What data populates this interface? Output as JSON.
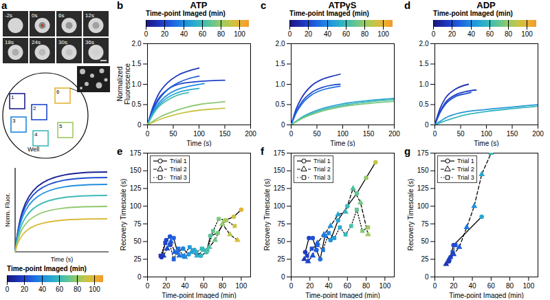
{
  "panel_a": {
    "letter": "a",
    "frame_labels": [
      "-2s",
      "0s",
      "6s",
      "12s",
      "18s",
      "24s",
      "30s",
      "36s"
    ],
    "region_labels": [
      "1",
      "2",
      "3",
      "4",
      "5",
      "6"
    ],
    "well_label": "Well",
    "schematic_ylabel": "Norm. Fluor.",
    "schematic_xlabel": "Time (s)"
  },
  "colorbar": {
    "label": "Time-point Imaged (min)",
    "range": [
      0,
      110
    ],
    "ticks": [
      0,
      20,
      40,
      60,
      80,
      100
    ]
  },
  "chart_data": [
    {
      "panel": "b",
      "type": "line",
      "title": "ATP",
      "xlabel": "Time (s)",
      "ylabel": "Normalized Fluorescence",
      "xlim": [
        0,
        200
      ],
      "xticks": [
        0,
        50,
        100,
        150,
        200
      ],
      "ylim": [
        0,
        2
      ],
      "yticks": [
        0,
        0.5,
        {
          "value": 1,
          "label": "1.0"
        },
        1.5,
        {
          "value": 2,
          "label": "2.0"
        }
      ],
      "series": [
        {
          "time_point": 15,
          "x": [
            0,
            10,
            20,
            40,
            60,
            80,
            100
          ],
          "values": [
            0,
            0.42,
            0.72,
            1.05,
            1.23,
            1.33,
            1.4
          ]
        },
        {
          "time_point": 18,
          "x": [
            0,
            10,
            20,
            40,
            60,
            100,
            150
          ],
          "values": [
            0,
            0.38,
            0.62,
            0.88,
            1.0,
            1.07,
            1.1
          ]
        },
        {
          "time_point": 28,
          "x": [
            0,
            10,
            20,
            40,
            60,
            80,
            100
          ],
          "values": [
            0,
            0.34,
            0.58,
            0.88,
            1.04,
            1.14,
            1.2
          ]
        },
        {
          "time_point": 40,
          "x": [
            0,
            10,
            20,
            40,
            60,
            80,
            110
          ],
          "values": [
            0,
            0.3,
            0.5,
            0.75,
            0.88,
            0.95,
            1.02
          ]
        },
        {
          "time_point": 50,
          "x": [
            0,
            10,
            20,
            40,
            60,
            80,
            100
          ],
          "values": [
            0,
            0.26,
            0.45,
            0.68,
            0.8,
            0.86,
            0.9
          ]
        },
        {
          "time_point": 62,
          "x": [
            0,
            10,
            20,
            40,
            60,
            80
          ],
          "values": [
            0,
            0.24,
            0.42,
            0.62,
            0.74,
            0.8
          ]
        },
        {
          "time_point": 78,
          "x": [
            0,
            25,
            50,
            75,
            100,
            125,
            150
          ],
          "values": [
            0,
            0.2,
            0.33,
            0.43,
            0.5,
            0.54,
            0.57
          ]
        },
        {
          "time_point": 92,
          "x": [
            0,
            25,
            50,
            75,
            100,
            125,
            150
          ],
          "values": [
            0,
            0.14,
            0.24,
            0.31,
            0.36,
            0.39,
            0.41
          ]
        }
      ]
    },
    {
      "panel": "c",
      "type": "line",
      "title": "ATPγS",
      "xlabel": "Time (s)",
      "ylabel": null,
      "xlim": [
        0,
        200
      ],
      "xticks": [
        0,
        50,
        100,
        150,
        200
      ],
      "ylim": [
        0,
        2
      ],
      "yticks": [
        0,
        0.5,
        {
          "value": 1,
          "label": "1.0"
        },
        1.5,
        {
          "value": 2,
          "label": "2.0"
        }
      ],
      "series": [
        {
          "time_point": 15,
          "x": [
            0,
            10,
            20,
            40,
            60,
            80,
            95
          ],
          "values": [
            0,
            0.4,
            0.66,
            0.97,
            1.12,
            1.2,
            1.25
          ]
        },
        {
          "time_point": 22,
          "x": [
            0,
            10,
            20,
            40,
            60,
            80,
            95
          ],
          "values": [
            0,
            0.33,
            0.55,
            0.8,
            0.92,
            0.98,
            1.0
          ]
        },
        {
          "time_point": 32,
          "x": [
            0,
            10,
            20,
            40,
            60,
            80,
            95
          ],
          "values": [
            0,
            0.3,
            0.5,
            0.74,
            0.86,
            0.92,
            0.95
          ]
        },
        {
          "time_point": 50,
          "x": [
            0,
            25,
            50,
            100,
            150,
            200
          ],
          "values": [
            0,
            0.22,
            0.36,
            0.52,
            0.6,
            0.65
          ]
        },
        {
          "time_point": 62,
          "x": [
            0,
            25,
            50,
            100,
            150,
            200
          ],
          "values": [
            0,
            0.2,
            0.33,
            0.48,
            0.57,
            0.62
          ]
        },
        {
          "time_point": 75,
          "x": [
            0,
            25,
            50,
            100,
            150,
            200
          ],
          "values": [
            0,
            0.18,
            0.3,
            0.45,
            0.53,
            0.58
          ]
        }
      ]
    },
    {
      "panel": "d",
      "type": "line",
      "title": "ADP",
      "xlabel": "Time (s)",
      "ylabel": null,
      "xlim": [
        0,
        200
      ],
      "xticks": [
        0,
        50,
        100,
        150,
        200
      ],
      "ylim": [
        0,
        2
      ],
      "yticks": [
        0,
        0.5,
        {
          "value": 1,
          "label": "1.0"
        },
        1.5,
        {
          "value": 2,
          "label": "2.0"
        }
      ],
      "series": [
        {
          "time_point": 12,
          "x": [
            0,
            10,
            20,
            40,
            65
          ],
          "values": [
            0,
            0.4,
            0.65,
            0.88,
            1.0
          ]
        },
        {
          "time_point": 17,
          "x": [
            0,
            10,
            20,
            40,
            60,
            80
          ],
          "values": [
            0,
            0.32,
            0.54,
            0.74,
            0.82,
            0.86
          ]
        },
        {
          "time_point": 22,
          "x": [
            0,
            10,
            20,
            40,
            60,
            70
          ],
          "values": [
            0,
            0.3,
            0.5,
            0.7,
            0.77,
            0.8
          ]
        },
        {
          "time_point": 45,
          "x": [
            0,
            25,
            50,
            100,
            150,
            200
          ],
          "values": [
            0,
            0.2,
            0.3,
            0.38,
            0.44,
            0.5
          ]
        },
        {
          "time_point": 58,
          "x": [
            0,
            25,
            50,
            100,
            150,
            200
          ],
          "values": [
            0,
            0.12,
            0.22,
            0.33,
            0.4,
            0.46
          ]
        }
      ]
    },
    {
      "panel": "e",
      "type": "scatter",
      "xlabel": "Time-point Imaged (min)",
      "ylabel": "Recovery Timescale (s)",
      "xlim": [
        0,
        110
      ],
      "xticks": [
        0,
        20,
        40,
        60,
        80,
        100
      ],
      "ylim": [
        0,
        175
      ],
      "yticks": [
        0,
        25,
        50,
        75,
        100,
        125,
        150,
        175
      ],
      "legend": "top-left",
      "series": [
        {
          "name": "Trial 1",
          "line_style": "solid",
          "marker": "circle",
          "x": [
            15,
            20,
            24,
            28,
            32,
            38,
            44,
            50,
            57,
            63,
            67,
            75,
            83,
            92,
            100
          ],
          "values": [
            28,
            52,
            57,
            55,
            35,
            40,
            32,
            38,
            30,
            35,
            58,
            62,
            80,
            85,
            95
          ]
        },
        {
          "name": "Trial 2",
          "line_style": "dashed",
          "marker": "triangle",
          "x": [
            17,
            21,
            25,
            29,
            34,
            40,
            47,
            53,
            60,
            66,
            72,
            80,
            88,
            96
          ],
          "values": [
            30,
            40,
            50,
            35,
            30,
            28,
            35,
            30,
            38,
            42,
            52,
            75,
            60,
            52
          ]
        },
        {
          "name": "Trial 3",
          "line_style": "dotted",
          "marker": "square",
          "x": [
            14,
            19,
            24,
            28,
            33,
            38,
            45,
            52,
            58,
            64,
            70,
            76,
            84,
            93
          ],
          "values": [
            30,
            48,
            45,
            25,
            40,
            30,
            42,
            35,
            40,
            38,
            65,
            82,
            80,
            72
          ]
        }
      ]
    },
    {
      "panel": "f",
      "type": "scatter",
      "xlabel": "Time-point Imaged (min)",
      "ylabel": "Recovery Timescale (s)",
      "xlim": [
        0,
        110
      ],
      "xticks": [
        0,
        20,
        40,
        60,
        80,
        100
      ],
      "ylim": [
        0,
        175
      ],
      "yticks": [
        0,
        25,
        50,
        75,
        100,
        125,
        150,
        175
      ],
      "legend": "top-left",
      "series": [
        {
          "name": "Trial 1",
          "line_style": "solid",
          "marker": "circle",
          "x": [
            15,
            19,
            23,
            27,
            31,
            36,
            42,
            50,
            60,
            70,
            80,
            90
          ],
          "values": [
            35,
            55,
            55,
            38,
            25,
            58,
            52,
            80,
            100,
            118,
            140,
            162
          ]
        },
        {
          "name": "Trial 2",
          "line_style": "dashed",
          "marker": "triangle",
          "x": [
            14,
            18,
            23,
            28,
            35,
            42,
            50,
            58,
            66,
            74,
            82
          ],
          "values": [
            25,
            22,
            30,
            48,
            60,
            72,
            88,
            92,
            125,
            105,
            60
          ]
        },
        {
          "name": "Trial 3",
          "line_style": "dotted",
          "marker": "square",
          "x": [
            17,
            22,
            28,
            34,
            40,
            46,
            52,
            58,
            64,
            70,
            76,
            82
          ],
          "values": [
            30,
            40,
            45,
            38,
            62,
            55,
            70,
            60,
            72,
            95,
            65,
            70
          ]
        }
      ]
    },
    {
      "panel": "g",
      "type": "scatter",
      "xlabel": "Time-point Imaged (min)",
      "ylabel": "Recovery Timescale (s)",
      "xlim": [
        0,
        110
      ],
      "xticks": [
        0,
        20,
        40,
        60,
        80,
        100
      ],
      "ylim": [
        0,
        175
      ],
      "yticks": [
        0,
        25,
        50,
        75,
        100,
        125,
        150,
        175
      ],
      "legend": "top-left",
      "series": [
        {
          "name": "Trial 1",
          "line_style": "solid",
          "marker": "circle",
          "x": [
            15,
            20,
            50
          ],
          "values": [
            22,
            45,
            85
          ]
        },
        {
          "name": "Trial 2",
          "line_style": "dashed",
          "marker": "triangle",
          "x": [
            12,
            15,
            20,
            26,
            34,
            42,
            50,
            60
          ],
          "values": [
            18,
            25,
            32,
            42,
            70,
            100,
            145,
            175
          ]
        },
        {
          "name": "Trial 3",
          "line_style": "dotted",
          "marker": "square",
          "x": [
            17,
            19,
            22
          ],
          "values": [
            28,
            35,
            45
          ]
        }
      ]
    }
  ]
}
